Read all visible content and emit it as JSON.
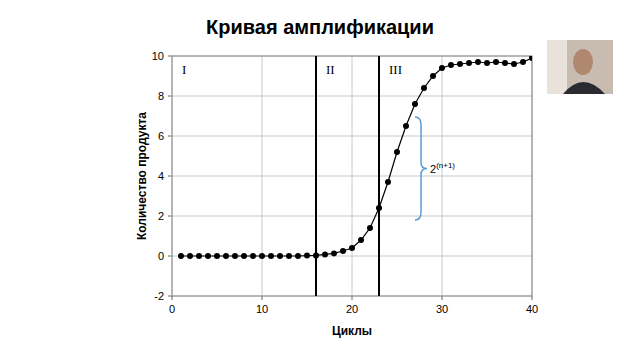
{
  "chart_data": {
    "type": "line",
    "title": "Кривая амплификации",
    "x_label": "Циклы",
    "y_label": "Количество продукта",
    "x": [
      1,
      2,
      3,
      4,
      5,
      6,
      7,
      8,
      9,
      10,
      11,
      12,
      13,
      14,
      15,
      16,
      17,
      18,
      19,
      20,
      21,
      22,
      23,
      24,
      25,
      26,
      27,
      28,
      29,
      30,
      31,
      32,
      33,
      34,
      35,
      36,
      37,
      38,
      39,
      40
    ],
    "series": [
      {
        "name": "Количество продукта",
        "color": "#000000",
        "marker": "circle",
        "line_style": "solid",
        "values": [
          0,
          0,
          0,
          0,
          0,
          0,
          0,
          0,
          0,
          0,
          0,
          0,
          0,
          0,
          0.02,
          0.03,
          0.08,
          0.13,
          0.25,
          0.4,
          0.8,
          1.4,
          2.4,
          3.7,
          5.2,
          6.5,
          7.6,
          8.4,
          9.0,
          9.4,
          9.55,
          9.6,
          9.65,
          9.7,
          9.65,
          9.7,
          9.65,
          9.6,
          9.7,
          9.9
        ]
      }
    ],
    "xlim": [
      0,
      40
    ],
    "xticks": [
      0,
      10,
      20,
      30,
      40
    ],
    "ylim": [
      -2,
      10
    ],
    "yticks": [
      -2,
      0,
      2,
      4,
      6,
      8,
      10
    ],
    "grid": true,
    "phases": {
      "labels": [
        "I",
        "II",
        "III"
      ],
      "boundaries": [
        16,
        23
      ]
    },
    "bracket": {
      "base": "2",
      "exponent": "(n+1)",
      "x": 27,
      "y": [
        1.8,
        6.95
      ],
      "color": "#5b9bd5"
    }
  }
}
